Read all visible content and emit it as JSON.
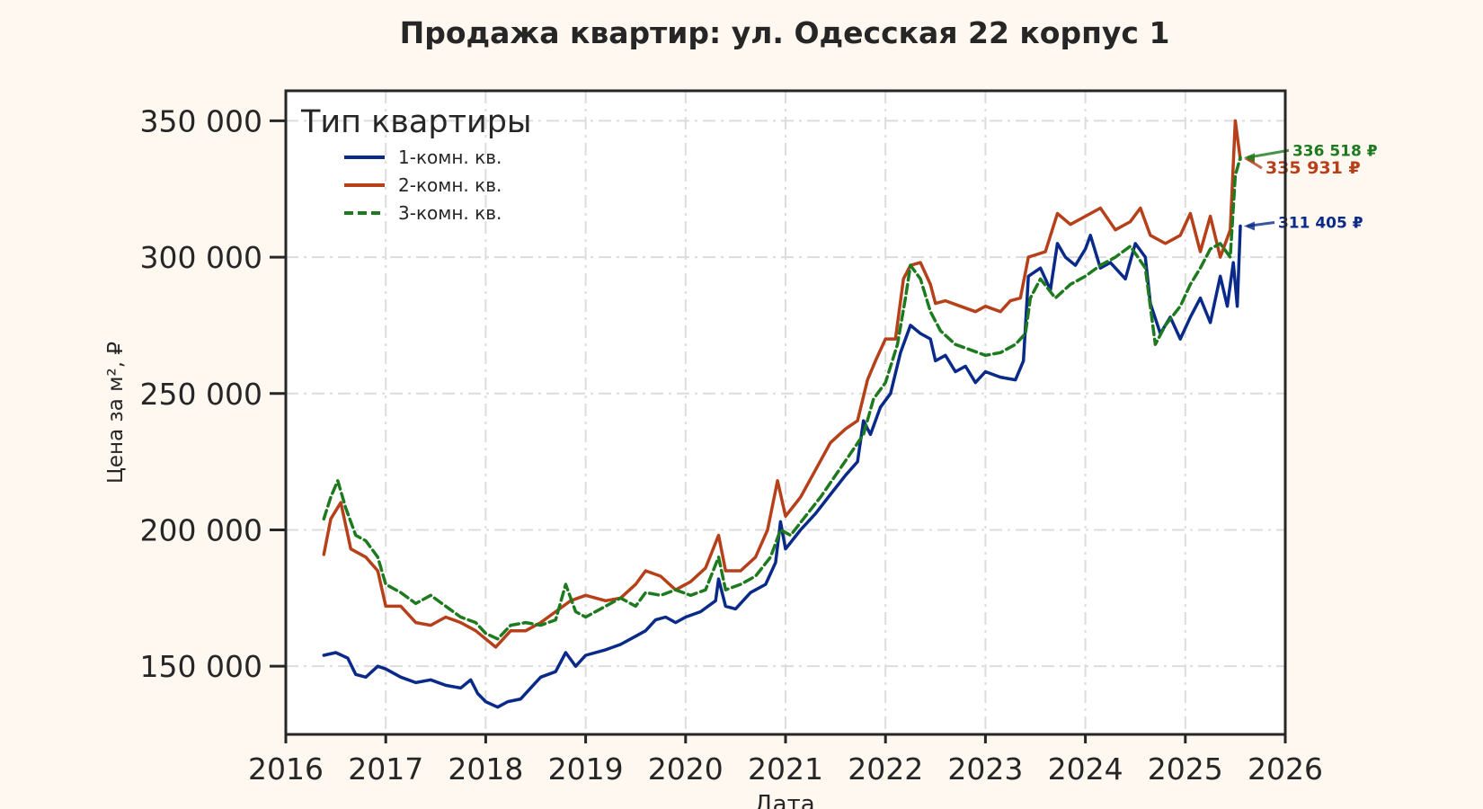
{
  "chart_data": {
    "type": "line",
    "title": "Продажа квартир: ул. Одесская 22 корпус 1",
    "xlabel": "Дата",
    "ylabel": "Цена за м², ₽",
    "xlim": [
      2016,
      2026
    ],
    "ylim": [
      125000,
      361000
    ],
    "x_ticks": [
      2016,
      2017,
      2018,
      2019,
      2020,
      2021,
      2022,
      2023,
      2024,
      2025,
      2026
    ],
    "x_tick_labels": [
      "2016",
      "2017",
      "2018",
      "2019",
      "2020",
      "2021",
      "2022",
      "2023",
      "2024",
      "2025",
      "2026"
    ],
    "y_ticks": [
      150000,
      200000,
      250000,
      300000,
      350000
    ],
    "y_tick_labels": [
      "150 000",
      "200 000",
      "250 000",
      "300 000",
      "350 000"
    ],
    "grid": true,
    "legend": {
      "title": "Тип квартиры",
      "position": "top-left"
    },
    "series": [
      {
        "name": "1-комн. кв.",
        "color": "#0a2a8a",
        "style": "solid",
        "end_label": "311 405 ₽",
        "points": [
          [
            2016.38,
            154000
          ],
          [
            2016.5,
            155000
          ],
          [
            2016.62,
            153000
          ],
          [
            2016.7,
            147000
          ],
          [
            2016.8,
            146000
          ],
          [
            2016.92,
            150000
          ],
          [
            2017.0,
            149000
          ],
          [
            2017.15,
            146000
          ],
          [
            2017.3,
            144000
          ],
          [
            2017.45,
            145000
          ],
          [
            2017.6,
            143000
          ],
          [
            2017.75,
            142000
          ],
          [
            2017.85,
            145000
          ],
          [
            2017.92,
            140000
          ],
          [
            2018.0,
            137000
          ],
          [
            2018.12,
            135000
          ],
          [
            2018.22,
            137000
          ],
          [
            2018.35,
            138000
          ],
          [
            2018.45,
            142000
          ],
          [
            2018.55,
            146000
          ],
          [
            2018.7,
            148000
          ],
          [
            2018.8,
            155000
          ],
          [
            2018.9,
            150000
          ],
          [
            2019.0,
            154000
          ],
          [
            2019.2,
            156000
          ],
          [
            2019.35,
            158000
          ],
          [
            2019.5,
            161000
          ],
          [
            2019.6,
            163000
          ],
          [
            2019.7,
            167000
          ],
          [
            2019.8,
            168000
          ],
          [
            2019.9,
            166000
          ],
          [
            2020.0,
            168000
          ],
          [
            2020.15,
            170000
          ],
          [
            2020.3,
            174000
          ],
          [
            2020.33,
            182000
          ],
          [
            2020.4,
            172000
          ],
          [
            2020.5,
            171000
          ],
          [
            2020.65,
            177000
          ],
          [
            2020.8,
            180000
          ],
          [
            2020.9,
            188000
          ],
          [
            2020.95,
            203000
          ],
          [
            2021.0,
            193000
          ],
          [
            2021.15,
            200000
          ],
          [
            2021.3,
            206000
          ],
          [
            2021.45,
            213000
          ],
          [
            2021.6,
            220000
          ],
          [
            2021.72,
            225000
          ],
          [
            2021.78,
            240000
          ],
          [
            2021.85,
            235000
          ],
          [
            2021.95,
            245000
          ],
          [
            2022.05,
            250000
          ],
          [
            2022.15,
            265000
          ],
          [
            2022.25,
            275000
          ],
          [
            2022.35,
            272000
          ],
          [
            2022.45,
            270000
          ],
          [
            2022.5,
            262000
          ],
          [
            2022.6,
            264000
          ],
          [
            2022.7,
            258000
          ],
          [
            2022.8,
            260000
          ],
          [
            2022.9,
            254000
          ],
          [
            2023.0,
            258000
          ],
          [
            2023.15,
            256000
          ],
          [
            2023.3,
            255000
          ],
          [
            2023.38,
            262000
          ],
          [
            2023.43,
            293000
          ],
          [
            2023.55,
            296000
          ],
          [
            2023.65,
            288000
          ],
          [
            2023.72,
            305000
          ],
          [
            2023.8,
            300000
          ],
          [
            2023.9,
            297000
          ],
          [
            2024.0,
            303000
          ],
          [
            2024.05,
            308000
          ],
          [
            2024.15,
            296000
          ],
          [
            2024.25,
            298000
          ],
          [
            2024.4,
            292000
          ],
          [
            2024.5,
            305000
          ],
          [
            2024.6,
            300000
          ],
          [
            2024.65,
            283000
          ],
          [
            2024.75,
            272000
          ],
          [
            2024.85,
            278000
          ],
          [
            2024.95,
            270000
          ],
          [
            2025.05,
            278000
          ],
          [
            2025.15,
            285000
          ],
          [
            2025.25,
            276000
          ],
          [
            2025.35,
            293000
          ],
          [
            2025.42,
            282000
          ],
          [
            2025.48,
            298000
          ],
          [
            2025.52,
            282000
          ],
          [
            2025.55,
            311405
          ]
        ]
      },
      {
        "name": "2-комн. кв.",
        "color": "#b5401a",
        "style": "solid",
        "end_label": "335 931 ₽",
        "points": [
          [
            2016.38,
            191000
          ],
          [
            2016.45,
            204000
          ],
          [
            2016.55,
            210000
          ],
          [
            2016.65,
            193000
          ],
          [
            2016.8,
            190000
          ],
          [
            2016.92,
            185000
          ],
          [
            2017.0,
            172000
          ],
          [
            2017.15,
            172000
          ],
          [
            2017.3,
            166000
          ],
          [
            2017.45,
            165000
          ],
          [
            2017.6,
            168000
          ],
          [
            2017.75,
            166000
          ],
          [
            2017.9,
            163000
          ],
          [
            2018.0,
            160000
          ],
          [
            2018.1,
            157000
          ],
          [
            2018.25,
            163000
          ],
          [
            2018.4,
            163000
          ],
          [
            2018.55,
            166000
          ],
          [
            2018.7,
            170000
          ],
          [
            2018.85,
            174000
          ],
          [
            2019.0,
            176000
          ],
          [
            2019.2,
            174000
          ],
          [
            2019.35,
            175000
          ],
          [
            2019.5,
            180000
          ],
          [
            2019.6,
            185000
          ],
          [
            2019.75,
            183000
          ],
          [
            2019.9,
            178000
          ],
          [
            2020.05,
            181000
          ],
          [
            2020.2,
            186000
          ],
          [
            2020.33,
            198000
          ],
          [
            2020.4,
            185000
          ],
          [
            2020.55,
            185000
          ],
          [
            2020.7,
            190000
          ],
          [
            2020.82,
            200000
          ],
          [
            2020.92,
            218000
          ],
          [
            2021.0,
            205000
          ],
          [
            2021.15,
            212000
          ],
          [
            2021.3,
            222000
          ],
          [
            2021.45,
            232000
          ],
          [
            2021.6,
            237000
          ],
          [
            2021.72,
            240000
          ],
          [
            2021.82,
            255000
          ],
          [
            2021.9,
            262000
          ],
          [
            2022.0,
            270000
          ],
          [
            2022.1,
            270000
          ],
          [
            2022.18,
            292000
          ],
          [
            2022.25,
            297000
          ],
          [
            2022.35,
            298000
          ],
          [
            2022.45,
            290000
          ],
          [
            2022.5,
            283000
          ],
          [
            2022.6,
            284000
          ],
          [
            2022.75,
            282000
          ],
          [
            2022.9,
            280000
          ],
          [
            2023.0,
            282000
          ],
          [
            2023.15,
            280000
          ],
          [
            2023.25,
            284000
          ],
          [
            2023.35,
            285000
          ],
          [
            2023.43,
            300000
          ],
          [
            2023.6,
            302000
          ],
          [
            2023.72,
            316000
          ],
          [
            2023.85,
            312000
          ],
          [
            2024.0,
            315000
          ],
          [
            2024.15,
            318000
          ],
          [
            2024.3,
            310000
          ],
          [
            2024.45,
            313000
          ],
          [
            2024.55,
            318000
          ],
          [
            2024.65,
            308000
          ],
          [
            2024.8,
            305000
          ],
          [
            2024.95,
            308000
          ],
          [
            2025.05,
            316000
          ],
          [
            2025.15,
            302000
          ],
          [
            2025.25,
            315000
          ],
          [
            2025.35,
            300000
          ],
          [
            2025.45,
            310000
          ],
          [
            2025.5,
            350000
          ],
          [
            2025.55,
            335931
          ]
        ]
      },
      {
        "name": "3-комн. кв.",
        "color": "#1e7a1e",
        "style": "dashed",
        "end_label": "336 518 ₽",
        "points": [
          [
            2016.38,
            204000
          ],
          [
            2016.45,
            212000
          ],
          [
            2016.52,
            218000
          ],
          [
            2016.6,
            208000
          ],
          [
            2016.7,
            198000
          ],
          [
            2016.8,
            196000
          ],
          [
            2016.92,
            190000
          ],
          [
            2017.0,
            180000
          ],
          [
            2017.15,
            177000
          ],
          [
            2017.3,
            173000
          ],
          [
            2017.45,
            176000
          ],
          [
            2017.6,
            172000
          ],
          [
            2017.75,
            168000
          ],
          [
            2017.9,
            166000
          ],
          [
            2018.0,
            162000
          ],
          [
            2018.12,
            160000
          ],
          [
            2018.25,
            165000
          ],
          [
            2018.4,
            166000
          ],
          [
            2018.55,
            165000
          ],
          [
            2018.7,
            167000
          ],
          [
            2018.8,
            180000
          ],
          [
            2018.9,
            170000
          ],
          [
            2019.0,
            168000
          ],
          [
            2019.2,
            172000
          ],
          [
            2019.35,
            175000
          ],
          [
            2019.5,
            172000
          ],
          [
            2019.6,
            177000
          ],
          [
            2019.75,
            176000
          ],
          [
            2019.9,
            178000
          ],
          [
            2020.05,
            176000
          ],
          [
            2020.2,
            178000
          ],
          [
            2020.33,
            190000
          ],
          [
            2020.4,
            178000
          ],
          [
            2020.55,
            180000
          ],
          [
            2020.7,
            183000
          ],
          [
            2020.85,
            190000
          ],
          [
            2020.95,
            200000
          ],
          [
            2021.05,
            198000
          ],
          [
            2021.2,
            205000
          ],
          [
            2021.35,
            212000
          ],
          [
            2021.5,
            220000
          ],
          [
            2021.65,
            228000
          ],
          [
            2021.78,
            235000
          ],
          [
            2021.88,
            248000
          ],
          [
            2022.0,
            254000
          ],
          [
            2022.12,
            268000
          ],
          [
            2022.2,
            285000
          ],
          [
            2022.25,
            297000
          ],
          [
            2022.35,
            292000
          ],
          [
            2022.45,
            280000
          ],
          [
            2022.55,
            273000
          ],
          [
            2022.7,
            268000
          ],
          [
            2022.85,
            266000
          ],
          [
            2023.0,
            264000
          ],
          [
            2023.15,
            265000
          ],
          [
            2023.3,
            268000
          ],
          [
            2023.4,
            272000
          ],
          [
            2023.45,
            285000
          ],
          [
            2023.55,
            292000
          ],
          [
            2023.7,
            285000
          ],
          [
            2023.85,
            290000
          ],
          [
            2024.0,
            293000
          ],
          [
            2024.15,
            297000
          ],
          [
            2024.3,
            300000
          ],
          [
            2024.45,
            304000
          ],
          [
            2024.6,
            296000
          ],
          [
            2024.7,
            268000
          ],
          [
            2024.8,
            275000
          ],
          [
            2024.95,
            282000
          ],
          [
            2025.05,
            290000
          ],
          [
            2025.15,
            296000
          ],
          [
            2025.25,
            303000
          ],
          [
            2025.35,
            305000
          ],
          [
            2025.45,
            300000
          ],
          [
            2025.5,
            330000
          ],
          [
            2025.55,
            336518
          ]
        ]
      }
    ]
  }
}
